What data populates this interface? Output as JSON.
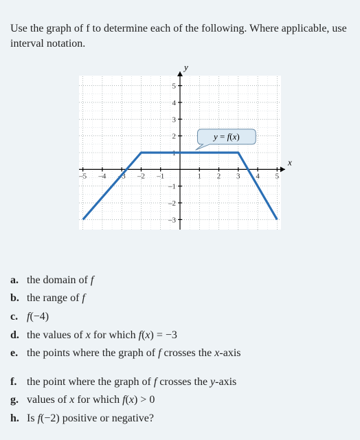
{
  "intro": "Use the graph of f to determine each of the following. Where applicable, use interval notation.",
  "chart": {
    "type": "line",
    "xlim": [
      -5.2,
      5.2
    ],
    "ylim": [
      -3.6,
      5.6
    ],
    "grid_color": "#7f8c8d",
    "background_color": "#ffffff",
    "axis_color": "#000000",
    "func_color": "#2a6fb5",
    "func_width": 3.2,
    "x_ticks": [
      -5,
      -4,
      -3,
      -2,
      -1,
      1,
      2,
      3,
      4,
      5
    ],
    "y_ticks": [
      -3,
      -2,
      -1,
      1,
      2,
      3,
      4,
      5
    ],
    "x_axis_label": "x",
    "y_axis_label": "y",
    "callout_label": "y = f(x)",
    "callout_bg": "#dceaf4",
    "callout_border": "#6a8ca8",
    "points": {
      "x": [
        -5,
        -2,
        3,
        5
      ],
      "y": [
        -3,
        1,
        1,
        -3
      ]
    }
  },
  "questions": {
    "a": {
      "marker": "a.",
      "html": "the domain of <span class=\"it\">f</span>"
    },
    "b": {
      "marker": "b.",
      "html": "the range of <span class=\"it\">f</span>"
    },
    "c": {
      "marker": "c.",
      "html": "<span class=\"it\">f</span>(−4)"
    },
    "d": {
      "marker": "d.",
      "html": "the values of <span class=\"it\">x</span> for which <span class=\"it\">f</span>(<span class=\"it\">x</span>) = −3"
    },
    "e": {
      "marker": "e.",
      "html": "the points where the graph of <span class=\"it\">f</span> crosses the <span class=\"it\">x</span>-axis"
    },
    "f": {
      "marker": "f.",
      "html": "the point where the graph of <span class=\"it\">f</span> crosses the <span class=\"it\">y</span>-axis"
    },
    "g": {
      "marker": "g.",
      "html": "values of <span class=\"it\">x</span> for which <span class=\"it\">f</span>(<span class=\"it\">x</span>) &gt; 0"
    },
    "h": {
      "marker": "h.",
      "html": "Is <span class=\"it\">f</span>(−2) positive or negative?"
    }
  }
}
